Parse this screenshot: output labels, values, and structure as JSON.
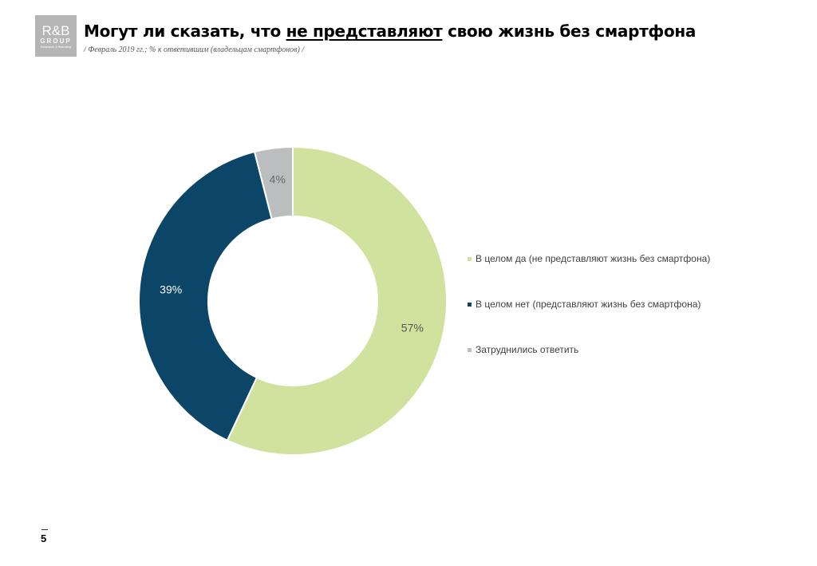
{
  "logo": {
    "line1": "R&B",
    "line2": "GROUP",
    "line3": "Research & Branding"
  },
  "header": {
    "title_before": "Могут ли сказать, что ",
    "title_underlined": "не представляют",
    "title_after": " свою жизнь без смартфона",
    "subtitle": "/ Февраль 2019 гг.; % к ответившим (владельцам смартфонов) /"
  },
  "colors": {
    "yes": "#d0e29d",
    "no": "#0b4669",
    "dk": "#bcbdbf"
  },
  "chart_data": {
    "type": "pie",
    "subtype": "donut",
    "title": "Могут ли сказать, что не представляют свою жизнь без смартфона",
    "subtitle": "/ Февраль 2019 гг.; % к ответившим (владельцам смартфонов) /",
    "categories": [
      "В целом да (не представляют жизнь без смартфона)",
      "В целом нет (представляют жизнь без смартфона)",
      "Затруднились ответить"
    ],
    "values": [
      57,
      39,
      4
    ],
    "labels": [
      "57%",
      "39%",
      "4%"
    ],
    "colors": [
      "#d0e29d",
      "#0b4669",
      "#bcbdbf"
    ],
    "legend_position": "right",
    "start_angle": "12 o'clock, clockwise"
  },
  "legend": [
    {
      "label": "В целом да (не представляют жизнь без смартфона)",
      "color": "#d0e29d"
    },
    {
      "label": "В целом нет (представляют жизнь без смартфона)",
      "color": "#0b4669"
    },
    {
      "label": "Затруднились ответить",
      "color": "#bcbdbf"
    }
  ],
  "footer": {
    "page_number": "5"
  }
}
